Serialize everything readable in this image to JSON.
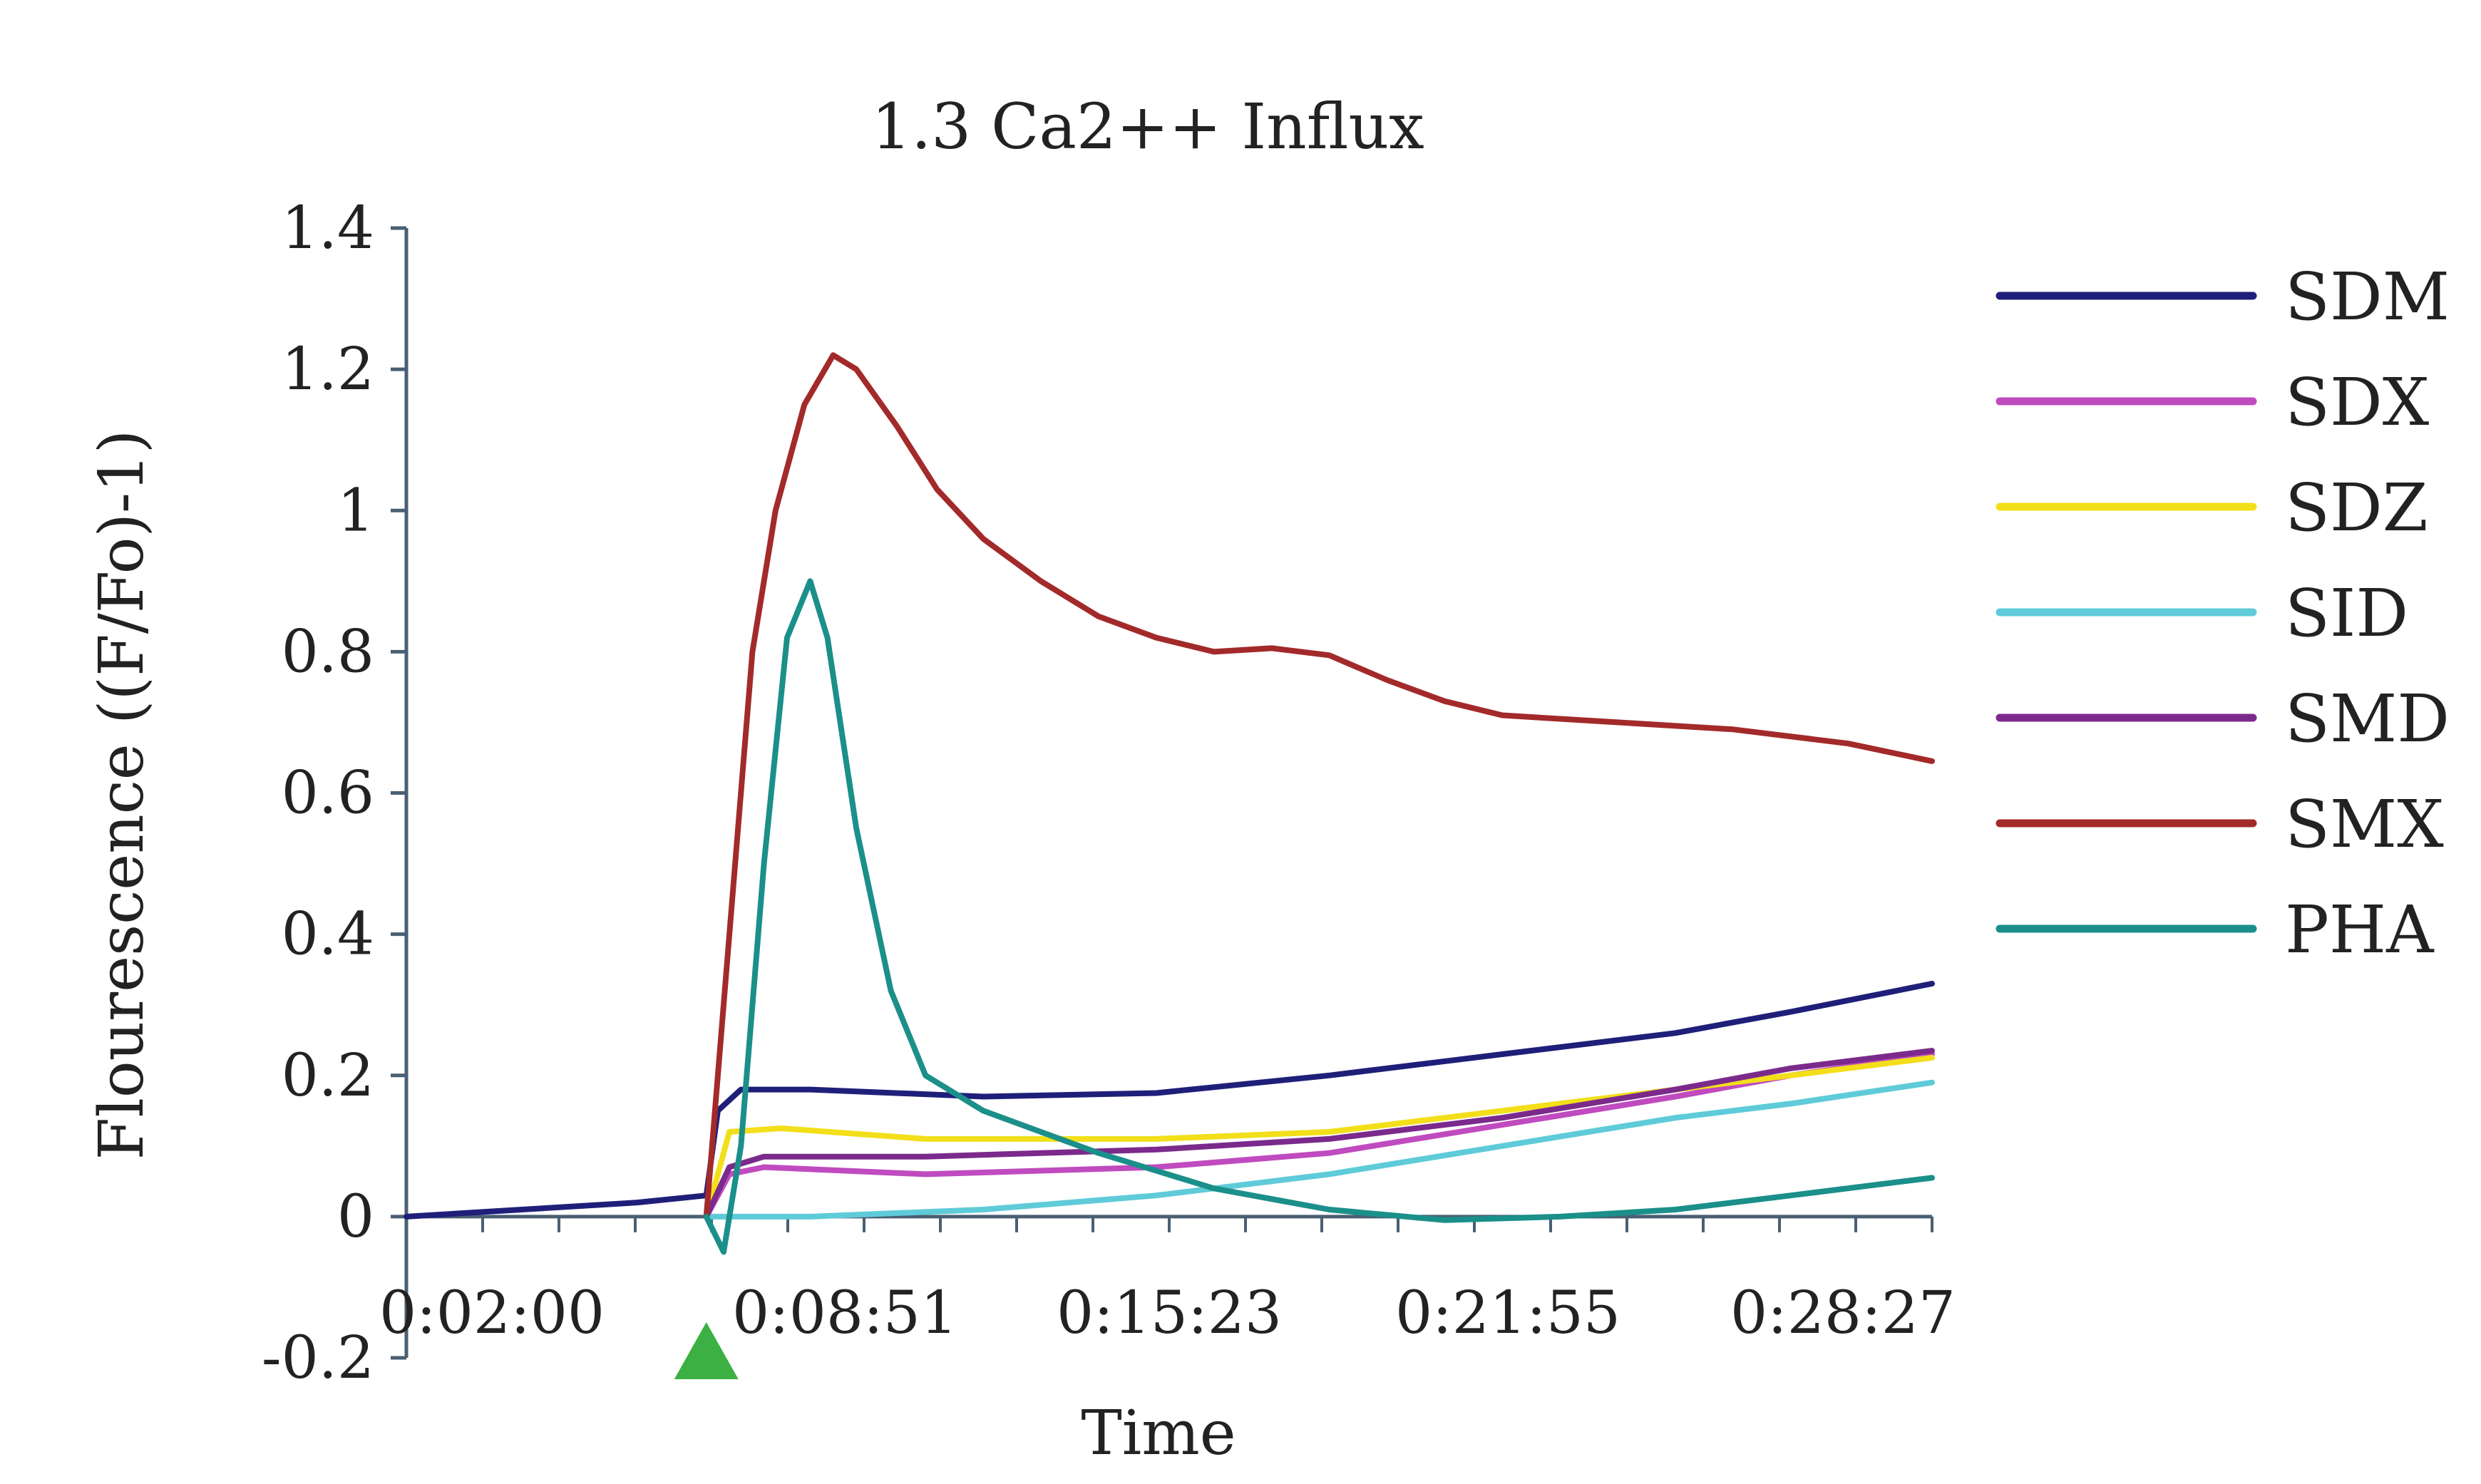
{
  "chart_data": {
    "type": "line",
    "title": "1.3 Ca2++ Influx",
    "xlabel": "Time",
    "ylabel": "Flourescence ((F/Fo)-1)",
    "x_tick_labels": [
      "0:02:00",
      "0:08:51",
      "0:15:23",
      "0:21:55",
      "0:28:27"
    ],
    "y_tick_labels": [
      "-0.2",
      "0",
      "0.2",
      "0.4",
      "0.6",
      "0.8",
      "1",
      "1.2",
      "1.4"
    ],
    "ylim": [
      -0.2,
      1.4
    ],
    "xlim_minutes": [
      2.0,
      28.45
    ],
    "grid": false,
    "legend_position": "right",
    "stimulus_marker": {
      "shape": "triangle",
      "color": "#3cb043",
      "x_minutes": 7.2
    },
    "series": [
      {
        "name": "SDM",
        "color": "#1f1f7a",
        "points": [
          [
            2.0,
            0.0
          ],
          [
            4.0,
            0.01
          ],
          [
            6.0,
            0.02
          ],
          [
            7.2,
            0.03
          ],
          [
            7.4,
            0.15
          ],
          [
            7.8,
            0.18
          ],
          [
            9.0,
            0.18
          ],
          [
            12.0,
            0.17
          ],
          [
            15.0,
            0.175
          ],
          [
            18.0,
            0.2
          ],
          [
            21.0,
            0.23
          ],
          [
            24.0,
            0.26
          ],
          [
            26.0,
            0.29
          ],
          [
            28.45,
            0.33
          ]
        ]
      },
      {
        "name": "SDX",
        "color": "#c04bbf",
        "points": [
          [
            7.2,
            0.0
          ],
          [
            7.6,
            0.06
          ],
          [
            8.2,
            0.07
          ],
          [
            11.0,
            0.06
          ],
          [
            15.0,
            0.07
          ],
          [
            18.0,
            0.09
          ],
          [
            21.0,
            0.13
          ],
          [
            24.0,
            0.17
          ],
          [
            26.0,
            0.2
          ],
          [
            28.45,
            0.23
          ]
        ]
      },
      {
        "name": "SDZ",
        "color": "#f2df1a",
        "points": [
          [
            7.2,
            0.0
          ],
          [
            7.6,
            0.12
          ],
          [
            8.5,
            0.125
          ],
          [
            11.0,
            0.11
          ],
          [
            15.0,
            0.11
          ],
          [
            18.0,
            0.12
          ],
          [
            21.0,
            0.15
          ],
          [
            24.0,
            0.18
          ],
          [
            26.0,
            0.2
          ],
          [
            28.45,
            0.225
          ]
        ]
      },
      {
        "name": "SID",
        "color": "#5fcbd9",
        "points": [
          [
            7.2,
            0.0
          ],
          [
            9.0,
            0.0
          ],
          [
            12.0,
            0.01
          ],
          [
            15.0,
            0.03
          ],
          [
            18.0,
            0.06
          ],
          [
            21.0,
            0.1
          ],
          [
            24.0,
            0.14
          ],
          [
            26.0,
            0.16
          ],
          [
            28.45,
            0.19
          ]
        ]
      },
      {
        "name": "SMD",
        "color": "#7b2a8c",
        "points": [
          [
            7.2,
            0.0
          ],
          [
            7.6,
            0.07
          ],
          [
            8.2,
            0.085
          ],
          [
            11.0,
            0.085
          ],
          [
            15.0,
            0.095
          ],
          [
            18.0,
            0.11
          ],
          [
            21.0,
            0.14
          ],
          [
            24.0,
            0.18
          ],
          [
            26.0,
            0.21
          ],
          [
            28.45,
            0.235
          ]
        ]
      },
      {
        "name": "SMX",
        "color": "#a32a2a",
        "points": [
          [
            7.2,
            0.0
          ],
          [
            7.6,
            0.4
          ],
          [
            8.0,
            0.8
          ],
          [
            8.4,
            1.0
          ],
          [
            8.9,
            1.15
          ],
          [
            9.4,
            1.22
          ],
          [
            9.8,
            1.2
          ],
          [
            10.5,
            1.12
          ],
          [
            11.2,
            1.03
          ],
          [
            12.0,
            0.96
          ],
          [
            13.0,
            0.9
          ],
          [
            14.0,
            0.85
          ],
          [
            15.0,
            0.82
          ],
          [
            16.0,
            0.8
          ],
          [
            17.0,
            0.805
          ],
          [
            18.0,
            0.795
          ],
          [
            19.0,
            0.76
          ],
          [
            20.0,
            0.73
          ],
          [
            21.0,
            0.71
          ],
          [
            22.0,
            0.705
          ],
          [
            23.0,
            0.7
          ],
          [
            25.0,
            0.69
          ],
          [
            27.0,
            0.67
          ],
          [
            28.45,
            0.645
          ]
        ]
      },
      {
        "name": "PHA",
        "color": "#1b8f8a",
        "points": [
          [
            7.2,
            0.0
          ],
          [
            7.5,
            -0.05
          ],
          [
            7.8,
            0.1
          ],
          [
            8.2,
            0.5
          ],
          [
            8.6,
            0.82
          ],
          [
            9.0,
            0.9
          ],
          [
            9.3,
            0.82
          ],
          [
            9.8,
            0.55
          ],
          [
            10.4,
            0.32
          ],
          [
            11.0,
            0.2
          ],
          [
            12.0,
            0.15
          ],
          [
            14.0,
            0.09
          ],
          [
            16.0,
            0.04
          ],
          [
            18.0,
            0.01
          ],
          [
            20.0,
            -0.005
          ],
          [
            22.0,
            0.0
          ],
          [
            24.0,
            0.01
          ],
          [
            26.0,
            0.03
          ],
          [
            28.45,
            0.055
          ]
        ]
      }
    ]
  }
}
